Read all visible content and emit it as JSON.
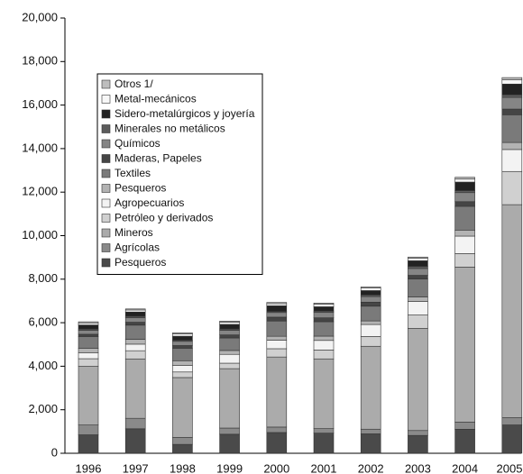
{
  "chart_data": {
    "type": "stacked_bar",
    "categories": [
      "1996",
      "1997",
      "1998",
      "1999",
      "2000",
      "2001",
      "2002",
      "2003",
      "2004",
      "2005"
    ],
    "series": [
      {
        "name": "Pesqueros",
        "color": "#4a4a4a",
        "values": [
          848,
          1126,
          409,
          876,
          955,
          926,
          892,
          821,
          1104,
          1303
        ]
      },
      {
        "name": "Agrícolas",
        "color": "#8a8a8a",
        "values": [
          450,
          481,
          324,
          283,
          249,
          207,
          216,
          224,
          325,
          331
        ]
      },
      {
        "name": "Mineros",
        "color": "#ababab",
        "values": [
          2696,
          2730,
          2747,
          2730,
          3220,
          3205,
          3809,
          4690,
          7124,
          9790
        ]
      },
      {
        "name": "Petróleo  y  derivados",
        "color": "#d0d0d0",
        "values": [
          352,
          376,
          256,
          251,
          381,
          410,
          451,
          618,
          625,
          1526
        ]
      },
      {
        "name": "Agropecuarios",
        "color": "#f3f3f3",
        "values": [
          277,
          301,
          305,
          405,
          394,
          437,
          550,
          624,
          801,
          1008
        ]
      },
      {
        "name": "Pesqueros",
        "color": "#b3b3b3",
        "values": [
          193,
          223,
          212,
          178,
          177,
          197,
          164,
          205,
          277,
          323
        ]
      },
      {
        "name": "Textiles",
        "color": "#7a7a7a",
        "values": [
          549,
          651,
          575,
          575,
          701,
          664,
          677,
          823,
          1092,
          1275
        ]
      },
      {
        "name": "Maderas,  Papeles",
        "color": "#454545",
        "values": [
          105,
          134,
          122,
          141,
          179,
          178,
          186,
          172,
          214,
          261
        ]
      },
      {
        "name": "Químicos",
        "color": "#858585",
        "values": [
          180,
          208,
          193,
          212,
          212,
          247,
          255,
          316,
          415,
          538
        ]
      },
      {
        "name": "Minerales  no  metálicos",
        "color": "#5c5c5c",
        "values": [
          61,
          67,
          55,
          61,
          54,
          64,
          76,
          94,
          94,
          118
        ]
      },
      {
        "name": "Sidero-metalúrgicos y joyería",
        "color": "#222222",
        "values": [
          185,
          195,
          183,
          211,
          255,
          198,
          200,
          259,
          391,
          493
        ]
      },
      {
        "name": "Metal-mecánicos",
        "color": "#f7f7f7",
        "values": [
          96,
          94,
          98,
          101,
          95,
          117,
          115,
          113,
          136,
          191
        ]
      },
      {
        "name": "Otros  1/",
        "color": "#bdbdbd",
        "values": [
          50,
          47,
          56,
          49,
          59,
          53,
          52,
          58,
          83,
          106
        ]
      }
    ],
    "ylim": [
      0,
      20000
    ],
    "yticks": [
      0,
      {
        "value": 2000,
        "label": "2,000"
      },
      {
        "value": 4000,
        "label": "4,000"
      },
      {
        "value": 6000,
        "label": "6,000"
      },
      {
        "value": 8000,
        "label": "8,000"
      },
      {
        "value": 10000,
        "label": "10,000"
      },
      {
        "value": 12000,
        "label": "12,000"
      },
      {
        "value": 14000,
        "label": "14,000"
      },
      {
        "value": 16000,
        "label": "16,000"
      },
      {
        "value": 18000,
        "label": "18,000"
      },
      {
        "value": 20000,
        "label": "20,000"
      }
    ],
    "grid": false,
    "legend": "upper left"
  }
}
